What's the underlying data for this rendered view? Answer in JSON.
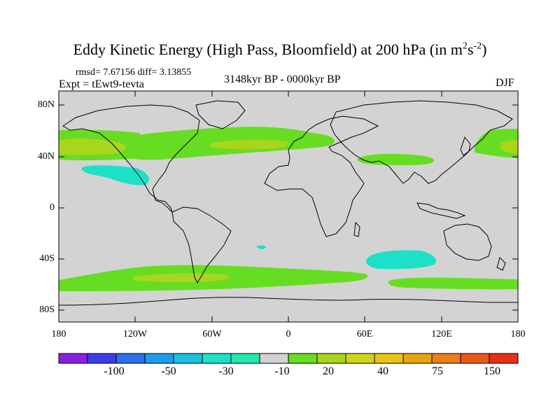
{
  "title": "Eddy Kinetic Energy (High Pass, Bloomfield) at 200 hPa (in m",
  "title_units_sup1": "2",
  "title_units_mid": "s",
  "title_units_sup2": "-2",
  "title_close": ")",
  "stats": "rmsd= 7.67156 diff= 3.13855",
  "expt": "Expt = tEwt9-tevta",
  "period": "3148kyr BP - 0000kyr BP",
  "season": "DJF",
  "map": {
    "lat_labels": [
      "80N",
      "40N",
      "0",
      "40S",
      "80S"
    ],
    "lon_labels": [
      "180",
      "120W",
      "60W",
      "0",
      "60E",
      "120E",
      "180"
    ],
    "features": [
      {
        "name": "north-pacific-storm-track",
        "level": "20-30"
      },
      {
        "name": "north-pacific-storm-track-core",
        "level": "30-40"
      },
      {
        "name": "north-atlantic-storm-track",
        "level": "20-30"
      },
      {
        "name": "north-atlantic-storm-track-core",
        "level": "30-40"
      },
      {
        "name": "southern-ocean-storm-track",
        "level": "20-30"
      },
      {
        "name": "southern-ocean-storm-track-core",
        "level": "30-40"
      },
      {
        "name": "subtropical-east-pacific-negative",
        "level": "-20 to -10"
      },
      {
        "name": "south-indian-ocean-negative",
        "level": "-20 to -10"
      }
    ]
  },
  "colorbar": {
    "colors": [
      "#8a1fe0",
      "#3d3de8",
      "#2b6fe8",
      "#1f9be8",
      "#1ec0e0",
      "#1de0c8",
      "#23e8b0",
      "#d3d3d3",
      "#66dd22",
      "#a8d61c",
      "#cfd41a",
      "#e8c515",
      "#e8a315",
      "#e8801a",
      "#e85a1a",
      "#e83018"
    ],
    "labels": [
      "-100",
      "-50",
      "-30",
      "-10",
      "20",
      "40",
      "75",
      "150"
    ]
  }
}
